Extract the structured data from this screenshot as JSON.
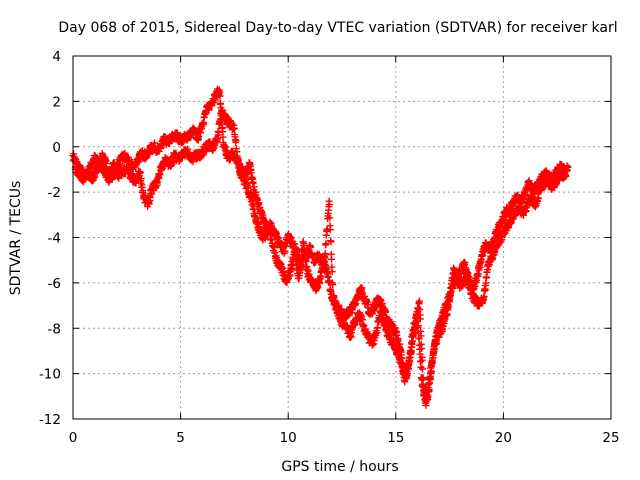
{
  "colors": {
    "series": "#ff0000",
    "grid": "#a0a0a0",
    "axis": "#000000",
    "background": "#ffffff"
  },
  "chart_data": {
    "type": "scatter",
    "title": "Day 068 of 2015, Sidereal Day-to-day VTEC variation (SDTVAR) for receiver karl",
    "xlabel": "GPS time / hours",
    "ylabel": "SDTVAR / TECUs",
    "xlim": [
      0,
      25
    ],
    "ylim": [
      -12,
      4
    ],
    "x_ticks": [
      0,
      5,
      10,
      15,
      20,
      25
    ],
    "x_tick_labels": [
      "0",
      "5",
      "10",
      "15",
      "20",
      "25"
    ],
    "y_ticks": [
      -12,
      -10,
      -8,
      -6,
      -4,
      -2,
      0,
      2,
      4
    ],
    "y_tick_labels": [
      "-12",
      "-10",
      "-8",
      "-6",
      "-4",
      "-2",
      "0",
      "2",
      "4"
    ],
    "grid": true,
    "marker": "plus",
    "series": [
      {
        "name": "SDTVAR",
        "x": [
          0.0,
          0.2,
          0.4,
          0.6,
          0.8,
          1.0,
          1.2,
          1.4,
          1.6,
          1.8,
          2.0,
          2.2,
          2.4,
          2.6,
          2.8,
          3.0,
          3.2,
          3.4,
          3.6,
          3.8,
          4.0,
          4.2,
          4.4,
          4.6,
          4.8,
          5.0,
          5.2,
          5.4,
          5.6,
          5.8,
          6.0,
          6.2,
          6.4,
          6.6,
          6.8,
          7.0,
          7.2,
          7.4,
          7.6,
          7.8,
          8.0,
          8.2,
          8.4,
          8.6,
          8.8,
          9.0,
          9.2,
          9.4,
          9.6,
          9.8,
          10.0,
          10.2,
          10.4,
          10.6,
          10.8,
          11.0,
          11.2,
          11.4,
          11.6,
          11.8,
          12.0,
          12.2,
          12.4,
          12.6,
          12.8,
          13.0,
          13.2,
          13.4,
          13.6,
          13.8,
          14.0,
          14.2,
          14.4,
          14.6,
          14.8,
          15.0,
          15.2,
          15.4,
          15.6,
          15.8,
          16.0,
          16.2,
          16.4,
          16.6,
          16.8,
          17.0,
          17.2,
          17.4,
          17.6,
          17.8,
          18.0,
          18.2,
          18.4,
          18.6,
          18.8,
          19.0,
          19.2,
          19.4,
          19.6,
          19.8,
          20.0,
          20.2,
          20.4,
          20.6,
          20.8,
          21.0,
          21.2,
          21.4,
          21.6,
          21.8,
          22.0,
          22.2,
          22.4,
          22.6,
          22.8,
          23.0
        ],
        "y": [
          -0.4,
          -0.8,
          -1.1,
          -1.3,
          -0.9,
          -0.5,
          -0.7,
          -0.4,
          -1.0,
          -1.3,
          -1.0,
          -0.6,
          -0.4,
          -0.7,
          -0.9,
          -0.6,
          -0.3,
          -0.4,
          -0.1,
          0.0,
          -0.2,
          0.3,
          0.2,
          0.4,
          0.5,
          0.3,
          0.4,
          0.5,
          0.7,
          0.4,
          1.0,
          1.6,
          1.9,
          2.2,
          2.5,
          0.0,
          -0.5,
          -0.3,
          -0.6,
          -0.9,
          -1.3,
          -0.7,
          -1.9,
          -2.5,
          -3.1,
          -3.6,
          -3.4,
          -3.9,
          -4.2,
          -4.6,
          -3.9,
          -4.3,
          -4.6,
          -5.3,
          -4.8,
          -4.4,
          -5.1,
          -4.8,
          -5.1,
          -5.4,
          -6.5,
          -6.9,
          -7.2,
          -7.5,
          -7.3,
          -7.1,
          -6.6,
          -6.3,
          -6.8,
          -7.4,
          -7.0,
          -6.7,
          -7.1,
          -7.6,
          -7.9,
          -8.2,
          -8.9,
          -10.3,
          -9.6,
          -8.1,
          -7.4,
          -10.2,
          -11.4,
          -10.0,
          -8.7,
          -8.3,
          -7.9,
          -7.2,
          -6.2,
          -5.8,
          -5.5,
          -5.2,
          -5.9,
          -6.3,
          -5.6,
          -4.8,
          -4.3,
          -4.6,
          -4.0,
          -3.5,
          -3.1,
          -2.8,
          -2.6,
          -2.2,
          -2.4,
          -2.1,
          -1.6,
          -2.0,
          -1.7,
          -1.3,
          -1.1,
          -1.4,
          -1.2,
          -0.9,
          -1.0,
          -0.9
        ]
      },
      {
        "name": "SDTVAR",
        "x": [
          0.1,
          0.3,
          0.5,
          0.7,
          0.9,
          1.1,
          1.3,
          1.5,
          1.7,
          1.9,
          2.1,
          2.3,
          2.5,
          2.7,
          2.9,
          3.1,
          3.3,
          3.5,
          3.7,
          3.9,
          4.1,
          4.3,
          4.5,
          4.7,
          4.9,
          5.1,
          5.3,
          5.5,
          5.7,
          5.9,
          6.1,
          6.3,
          6.5,
          6.7,
          6.9,
          7.1,
          7.3,
          7.5,
          7.7,
          7.9,
          8.1,
          8.3,
          8.5,
          8.7,
          8.9,
          9.1,
          9.3,
          9.5,
          9.7,
          9.9,
          10.1,
          10.3,
          10.5,
          10.7,
          10.9,
          11.1,
          11.3,
          11.5,
          11.7,
          11.9,
          12.1,
          12.3,
          12.5,
          12.7,
          12.9,
          13.1,
          13.3,
          13.5,
          13.7,
          13.9,
          14.1,
          14.3,
          14.5,
          14.7,
          14.9,
          15.1,
          15.3,
          15.5,
          15.7,
          15.9,
          16.1,
          16.3,
          16.5,
          16.7,
          16.9,
          17.1,
          17.3,
          17.5,
          17.7,
          17.9,
          18.1,
          18.3,
          18.5,
          18.7,
          18.9,
          19.1,
          19.3,
          19.5,
          19.7,
          19.9,
          20.1,
          20.3,
          20.5,
          20.7,
          20.9,
          21.1,
          21.3,
          21.5,
          21.7,
          21.9,
          22.1,
          22.3,
          22.5,
          22.7,
          22.9
        ],
        "y": [
          -1.0,
          -1.2,
          -1.4,
          -1.1,
          -1.5,
          -0.9,
          -0.8,
          -1.2,
          -1.5,
          -0.7,
          -1.3,
          -1.1,
          -1.0,
          -1.3,
          -1.6,
          -1.1,
          -2.3,
          -2.5,
          -1.8,
          -1.6,
          -0.9,
          -0.6,
          -0.8,
          -0.4,
          -0.5,
          -0.3,
          -0.2,
          -0.6,
          -0.3,
          -0.5,
          -0.1,
          0.1,
          0.0,
          0.3,
          1.6,
          1.2,
          1.0,
          0.8,
          -0.9,
          -1.4,
          -1.8,
          -2.3,
          -3.2,
          -3.8,
          -4.0,
          -3.6,
          -4.4,
          -5.1,
          -5.4,
          -5.9,
          -5.5,
          -4.6,
          -5.8,
          -4.2,
          -5.6,
          -5.9,
          -6.3,
          -5.7,
          -4.9,
          -2.4,
          -6.8,
          -7.3,
          -7.8,
          -8.0,
          -8.3,
          -7.7,
          -7.4,
          -7.9,
          -8.4,
          -8.7,
          -8.2,
          -7.3,
          -7.9,
          -8.4,
          -8.7,
          -9.1,
          -9.7,
          -10.2,
          -9.0,
          -7.8,
          -6.8,
          -10.9,
          -11.0,
          -9.4,
          -8.2,
          -7.6,
          -7.1,
          -6.6,
          -5.4,
          -6.1,
          -6.0,
          -5.7,
          -6.5,
          -6.8,
          -6.9,
          -6.6,
          -5.1,
          -4.9,
          -4.3,
          -4.0,
          -3.6,
          -3.3,
          -3.0,
          -2.7,
          -2.9,
          -2.6,
          -2.3,
          -2.5,
          -1.9,
          -1.6,
          -1.5,
          -1.8,
          -1.4,
          -1.2,
          -1.3
        ]
      }
    ]
  }
}
